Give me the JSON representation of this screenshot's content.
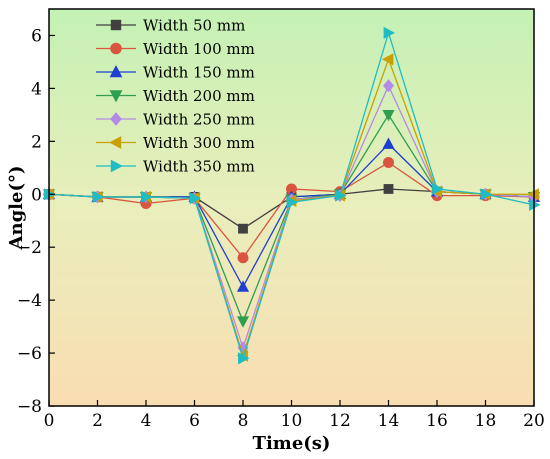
{
  "chart_data": {
    "type": "line",
    "title": "",
    "xlabel": "Time(s)",
    "ylabel": "Angle(°)",
    "xlim": [
      0,
      20
    ],
    "ylim": [
      -8,
      7
    ],
    "x_ticks": [
      0,
      2,
      4,
      6,
      8,
      10,
      12,
      14,
      16,
      18,
      20
    ],
    "y_ticks": [
      -8,
      -6,
      -4,
      -2,
      0,
      2,
      4,
      6
    ],
    "grid": false,
    "legend_position": "top-left",
    "background": "vertical gradient from light green (top) to light orange (bottom)",
    "x": [
      0,
      2,
      4,
      6,
      8,
      10,
      12,
      14,
      16,
      18,
      20
    ],
    "series": [
      {
        "name": "Width 50 mm",
        "marker": "square",
        "color": "#404040",
        "values": [
          0.0,
          -0.1,
          -0.1,
          -0.1,
          -1.3,
          -0.1,
          0.0,
          0.2,
          0.1,
          0.0,
          -0.1
        ]
      },
      {
        "name": "Width 100 mm",
        "marker": "circle",
        "color": "#d9553f",
        "values": [
          0.0,
          -0.1,
          -0.35,
          -0.15,
          -2.4,
          0.2,
          0.1,
          1.2,
          -0.05,
          -0.05,
          -0.1
        ]
      },
      {
        "name": "Width 150 mm",
        "marker": "triangle-up",
        "color": "#1f3fd0",
        "values": [
          0.0,
          -0.1,
          -0.1,
          -0.1,
          -3.5,
          -0.1,
          0.0,
          1.9,
          0.1,
          0.0,
          -0.1
        ]
      },
      {
        "name": "Width 200 mm",
        "marker": "triangle-down",
        "color": "#2e9e50",
        "values": [
          0.0,
          -0.1,
          -0.1,
          -0.15,
          -4.8,
          -0.2,
          0.0,
          3.0,
          0.1,
          0.0,
          -0.1
        ]
      },
      {
        "name": "Width 250 mm",
        "marker": "diamond",
        "color": "#b58ae6",
        "values": [
          0.0,
          -0.1,
          -0.1,
          -0.15,
          -5.8,
          -0.2,
          -0.05,
          4.1,
          0.1,
          0.0,
          -0.1
        ]
      },
      {
        "name": "Width 300 mm",
        "marker": "triangle-left",
        "color": "#c9a000",
        "values": [
          0.0,
          -0.1,
          -0.1,
          -0.15,
          -6.1,
          -0.25,
          -0.05,
          5.1,
          0.1,
          0.0,
          0.0
        ]
      },
      {
        "name": "Width 350 mm",
        "marker": "triangle-right",
        "color": "#1fbcc4",
        "values": [
          0.0,
          -0.1,
          -0.1,
          -0.15,
          -6.2,
          -0.3,
          -0.05,
          6.1,
          0.2,
          0.0,
          -0.4
        ]
      }
    ]
  }
}
